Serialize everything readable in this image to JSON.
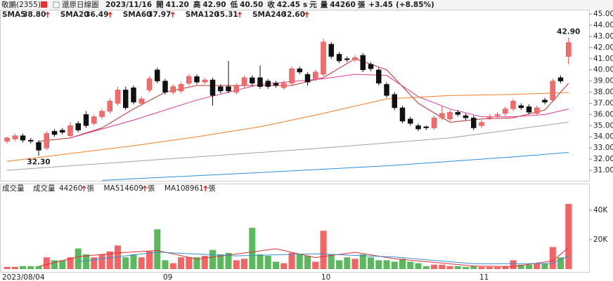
{
  "header": {
    "name": "敬鵬(2355)",
    "mode": "還原日線圖",
    "date": "2023/11/16",
    "quote": [
      {
        "label": "開",
        "value": "41.20"
      },
      {
        "label": "高",
        "value": "42.90"
      },
      {
        "label": "低",
        "value": "40.50"
      },
      {
        "label": "收",
        "value": "42.45"
      }
    ],
    "s": "s",
    "unit": "元",
    "volume_label": "量",
    "volume": "44260",
    "volume_unit": "張",
    "change": "+3.45",
    "change_pct": "(+8.85%)"
  },
  "chart_data": [
    {
      "type": "candlestick",
      "ylim": [
        30.06,
        45.38
      ],
      "yticks": [
        {
          "value": 31,
          "label": "31.00"
        },
        {
          "value": 32,
          "label": "32.00"
        },
        {
          "value": 33,
          "label": "33.00"
        },
        {
          "value": 34,
          "label": "34.00"
        },
        {
          "value": 35,
          "label": "35.00"
        },
        {
          "value": 36,
          "label": "36.00"
        },
        {
          "value": 37,
          "label": "37.00"
        },
        {
          "value": 38,
          "label": "38.00"
        },
        {
          "value": 39,
          "label": "39.00"
        },
        {
          "value": 40,
          "label": "40.00"
        },
        {
          "value": 41,
          "label": "41.00"
        },
        {
          "value": 42,
          "label": "42.00"
        },
        {
          "value": 43,
          "label": "43.00"
        },
        {
          "value": 44,
          "label": "44.00"
        },
        {
          "value": 45,
          "label": "45.00"
        }
      ],
      "up_color": "#f26c6c",
      "down_color": "#111111",
      "open": [
        33.6,
        33.8,
        34.1,
        33.7,
        33.5,
        33.0,
        34.5,
        34.6,
        34.1,
        35.2,
        36.0,
        35.2,
        35.8,
        36.3,
        37.0,
        38.2,
        38.4,
        37.0,
        38.2,
        40.0,
        39.0,
        38.0,
        38.1,
        38.8,
        39.4,
        38.9,
        39.1,
        38.5,
        38.5,
        38.0,
        38.6,
        39.3,
        39.3,
        39.0,
        38.8,
        38.4,
        38.8,
        40.1,
        39.6,
        39.2,
        39.6,
        42.3,
        41.4,
        41.0,
        40.9,
        41.3,
        40.5,
        40.0,
        38.7,
        37.8,
        36.6,
        35.6,
        35.0,
        34.9,
        34.8,
        35.7,
        35.6,
        36.2,
        35.9,
        35.7,
        35.0,
        35.7,
        35.9,
        36.1,
        36.5,
        36.8,
        36.7,
        36.1,
        37.3,
        37.3,
        39.3,
        41.2
      ],
      "high": [
        34.0,
        34.3,
        34.3,
        33.9,
        33.7,
        34.5,
        34.7,
        34.8,
        35.3,
        35.4,
        36.3,
        36.0,
        36.5,
        37.4,
        38.5,
        38.5,
        38.6,
        37.6,
        39.4,
        40.2,
        39.2,
        38.7,
        38.9,
        39.6,
        39.6,
        39.3,
        39.3,
        38.7,
        40.8,
        38.8,
        39.5,
        39.5,
        40.4,
        39.2,
        39.0,
        39.0,
        40.3,
        40.3,
        39.8,
        40.0,
        42.8,
        42.5,
        41.6,
        41.2,
        41.3,
        41.5,
        40.7,
        40.2,
        38.9,
        38.0,
        36.8,
        35.8,
        35.2,
        35.0,
        35.9,
        36.8,
        36.4,
        36.4,
        36.1,
        35.9,
        35.5,
        36.0,
        36.2,
        36.7,
        37.4,
        37.0,
        36.9,
        36.8,
        37.5,
        39.2,
        39.5,
        42.9
      ],
      "low": [
        33.4,
        33.6,
        33.5,
        33.4,
        32.3,
        32.8,
        34.0,
        34.2,
        33.9,
        34.4,
        34.8,
        35.0,
        35.6,
        36.1,
        36.8,
        36.4,
        36.9,
        36.8,
        38.0,
        38.8,
        37.8,
        37.8,
        37.9,
        38.6,
        38.7,
        38.7,
        36.8,
        37.9,
        37.9,
        37.8,
        38.4,
        38.6,
        38.3,
        38.3,
        38.4,
        38.2,
        38.6,
        39.6,
        38.6,
        39.0,
        39.4,
        41.0,
        40.6,
        40.7,
        40.7,
        39.8,
        39.9,
        38.6,
        37.5,
        36.4,
        35.2,
        35.0,
        34.5,
        34.6,
        34.6,
        35.5,
        35.4,
        35.8,
        35.5,
        34.6,
        34.8,
        35.5,
        35.7,
        35.9,
        36.3,
        36.4,
        36.0,
        35.9,
        36.9,
        37.1,
        38.8,
        40.5
      ],
      "close": [
        33.9,
        34.1,
        33.7,
        33.6,
        32.8,
        34.3,
        34.2,
        34.4,
        35.0,
        34.6,
        35.0,
        35.8,
        36.3,
        37.2,
        38.2,
        36.6,
        37.1,
        37.4,
        39.2,
        39.0,
        38.0,
        38.5,
        38.7,
        39.4,
        38.9,
        39.1,
        37.7,
        38.1,
        38.1,
        38.6,
        39.3,
        38.8,
        38.5,
        38.5,
        38.6,
        38.8,
        40.1,
        39.8,
        38.9,
        39.8,
        42.5,
        41.2,
        40.8,
        40.9,
        41.1,
        40.0,
        40.1,
        38.8,
        37.7,
        36.6,
        35.4,
        35.2,
        34.7,
        34.8,
        35.7,
        36.1,
        36.2,
        36.0,
        35.7,
        34.8,
        35.3,
        35.8,
        36.0,
        36.5,
        37.2,
        36.6,
        36.2,
        36.6,
        37.1,
        39.0,
        39.0,
        42.45
      ],
      "annotations": {
        "high": "42.90",
        "low": "32.30"
      },
      "series": [
        {
          "name": "SMA5",
          "legend_value": "38.80",
          "color": "#b5322a",
          "x": [
            4,
            8,
            12,
            16,
            20,
            24,
            28,
            32,
            36,
            40,
            44,
            48,
            52,
            56,
            60,
            64,
            68,
            71
          ],
          "values": [
            33.6,
            33.9,
            34.8,
            36.5,
            38.0,
            38.6,
            38.6,
            38.6,
            38.6,
            39.3,
            41.0,
            40.0,
            37.0,
            35.3,
            35.6,
            35.7,
            36.4,
            38.8
          ]
        },
        {
          "name": "SMA20",
          "legend_value": "36.49",
          "color": "#e0359b",
          "x": [
            8,
            16,
            24,
            32,
            40,
            44,
            48,
            52,
            56,
            60,
            64,
            68,
            71
          ],
          "values": [
            33.9,
            35.5,
            37.3,
            38.7,
            39.2,
            39.6,
            39.5,
            37.6,
            36.5,
            35.8,
            35.8,
            36.0,
            36.49
          ]
        },
        {
          "name": "SMA60",
          "legend_value": "37.97",
          "color": "#f07c20",
          "x": [
            0,
            16,
            24,
            32,
            40,
            48,
            56,
            64,
            71
          ],
          "values": [
            31.8,
            33.2,
            34.0,
            34.9,
            36.1,
            37.4,
            37.7,
            37.8,
            37.97
          ]
        },
        {
          "name": "SMA120",
          "legend_value": "35.31",
          "color": "#a0a0a0",
          "x": [
            0,
            24,
            40,
            56,
            71
          ],
          "values": [
            31.0,
            32.2,
            33.0,
            33.9,
            35.31
          ]
        },
        {
          "name": "SMA240",
          "legend_value": "32.60",
          "color": "#2a8fd6",
          "x": [
            12,
            32,
            48,
            64,
            71
          ],
          "values": [
            30.1,
            30.8,
            31.4,
            32.2,
            32.6
          ]
        }
      ]
    },
    {
      "type": "bar",
      "title": "成交量",
      "unit": "張",
      "ylim": [
        0,
        58000
      ],
      "yticks": [
        {
          "value": 20000,
          "label": "20K"
        },
        {
          "value": 40000,
          "label": "40K"
        }
      ],
      "up_color": "#f46464",
      "down_color": "#5cb85c",
      "categories": [
        "2023/08/04",
        null,
        null,
        null,
        null,
        null,
        null,
        null,
        null,
        null,
        null,
        null,
        null,
        null,
        null,
        null,
        null,
        null,
        null,
        null,
        "09",
        null,
        null,
        null,
        null,
        null,
        null,
        null,
        null,
        null,
        null,
        null,
        null,
        null,
        null,
        null,
        null,
        null,
        null,
        null,
        "10",
        null,
        null,
        null,
        null,
        null,
        null,
        null,
        null,
        null,
        null,
        null,
        null,
        null,
        null,
        null,
        null,
        null,
        null,
        null,
        "11",
        null,
        null,
        null,
        null,
        null,
        null,
        null,
        null,
        null,
        null,
        null
      ],
      "values": [
        1500,
        1500,
        2000,
        2000,
        2000,
        8000,
        6000,
        6000,
        8000,
        14000,
        10000,
        8000,
        10000,
        12000,
        16000,
        8000,
        10000,
        8000,
        12000,
        27000,
        6000,
        4000,
        8000,
        8000,
        8000,
        9000,
        13000,
        10000,
        11000,
        6000,
        7000,
        28000,
        10000,
        9000,
        5000,
        4000,
        11000,
        10000,
        9000,
        5000,
        26000,
        10000,
        6000,
        8000,
        7000,
        10000,
        8000,
        6000,
        6000,
        5000,
        7000,
        5000,
        4000,
        2000,
        3000,
        3000,
        2000,
        2000,
        1500,
        2000,
        1500,
        1500,
        1500,
        2000,
        6000,
        3000,
        3000,
        4000,
        4000,
        15000,
        8000,
        44260
      ],
      "legend_name": "成交量",
      "legend_value": "44260",
      "series": [
        {
          "name": "MA5",
          "legend_value": "14609",
          "color": "#e03030",
          "x": [
            4,
            9,
            14,
            19,
            24,
            29,
            34,
            39,
            44,
            49,
            54,
            59,
            64,
            69,
            71
          ],
          "values": [
            1800,
            8400,
            11000,
            12600,
            6800,
            10200,
            13800,
            7800,
            11400,
            7000,
            4600,
            2100,
            1700,
            5600,
            14609
          ]
        },
        {
          "name": "MA10",
          "legend_value": "8961",
          "color": "#3a8fd0",
          "x": [
            9,
            19,
            29,
            39,
            49,
            59,
            69,
            71
          ],
          "values": [
            5100,
            11500,
            9000,
            10400,
            8200,
            3600,
            3800,
            8961
          ]
        }
      ]
    }
  ]
}
